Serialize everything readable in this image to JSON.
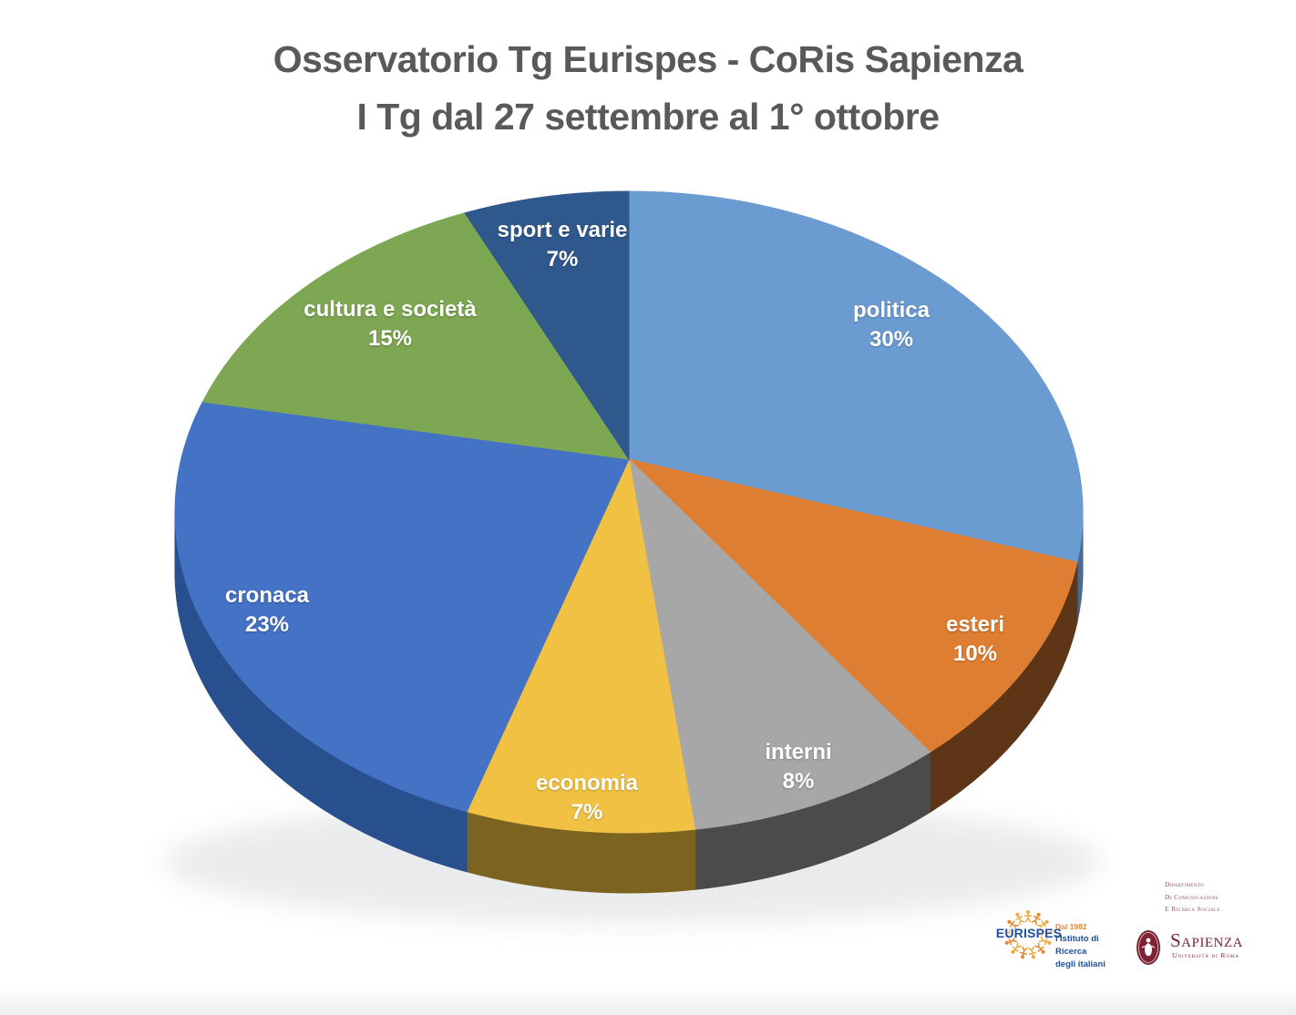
{
  "title": {
    "line1": "Osservatorio Tg Eurispes - CoRis Sapienza",
    "line2": "I Tg dal 27 settembre al 1° ottobre"
  },
  "chart_data": {
    "type": "pie",
    "style": "3d-perspective",
    "title": "Osservatorio Tg Eurispes - CoRis Sapienza — I Tg dal 27 settembre al 1° ottobre",
    "unit": "%",
    "values_are_percent": true,
    "start_angle_deg_clockwise_from_top": 0,
    "legend": "none (labels on slices)",
    "label_color": "#FFFFFF",
    "slices": [
      {
        "id": "politica",
        "label": "politica",
        "value": 30,
        "pct_label": "30%",
        "color": "#6A9BD1",
        "side_color": "#466A92"
      },
      {
        "id": "esteri",
        "label": "esteri",
        "value": 10,
        "pct_label": "10%",
        "color": "#DE7E32",
        "side_color": "#5E3516"
      },
      {
        "id": "interni",
        "label": "interni",
        "value": 8,
        "pct_label": "8%",
        "color": "#A7A7A7",
        "side_color": "#4B4B4B"
      },
      {
        "id": "economia",
        "label": "economia",
        "value": 7,
        "pct_label": "7%",
        "color": "#F1C143",
        "side_color": "#7C6420"
      },
      {
        "id": "cronaca",
        "label": "cronaca",
        "value": 23,
        "pct_label": "23%",
        "color": "#4472C4",
        "side_color": "#28508F"
      },
      {
        "id": "cultura",
        "label": "cultura e società",
        "value": 15,
        "pct_label": "15%",
        "color": "#7EA753",
        "side_color": "#50682F"
      },
      {
        "id": "sport",
        "label": "sport e varie",
        "value": 7,
        "pct_label": "7%",
        "color": "#2F598C",
        "side_color": "#1F3B5D"
      }
    ]
  },
  "logos": {
    "eurispes": {
      "name": "EURISPES",
      "tagline_line1": "Dal 1982",
      "tagline_line2": "l'Istituto di Ricerca",
      "tagline_line3": "degli italiani",
      "brand_blue": "#1D4F9C",
      "brand_orange": "#E8862E"
    },
    "sapienza": {
      "dept_line1": "Dipartimento",
      "dept_line2": "di Comunicazione",
      "dept_line3": "e Ricerca Sociale",
      "name": "Sapienza",
      "subtitle": "Università di Roma",
      "brand_maroon": "#7D2333"
    }
  }
}
